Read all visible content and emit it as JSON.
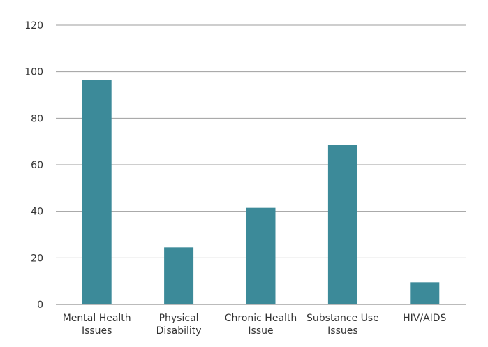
{
  "chart_data": {
    "type": "bar",
    "title": "",
    "xlabel": "",
    "ylabel": "",
    "categories": [
      [
        "Mental Health",
        "Issues"
      ],
      [
        "Physical",
        "Disability"
      ],
      [
        "Chronic Health",
        "Issue"
      ],
      [
        "Substance Use",
        "Issues"
      ],
      [
        "HIV/AIDS"
      ]
    ],
    "values": [
      96.5,
      24.5,
      41.5,
      68.5,
      9.5
    ],
    "ylim": [
      0,
      120
    ],
    "yticks": [
      "0",
      "20",
      "40",
      "60",
      "80",
      "100",
      "120"
    ],
    "grid": true,
    "legend": "none",
    "colors": {
      "bar": "#3c8a99",
      "grid": "#9e9e9e",
      "text": "#333333"
    }
  }
}
